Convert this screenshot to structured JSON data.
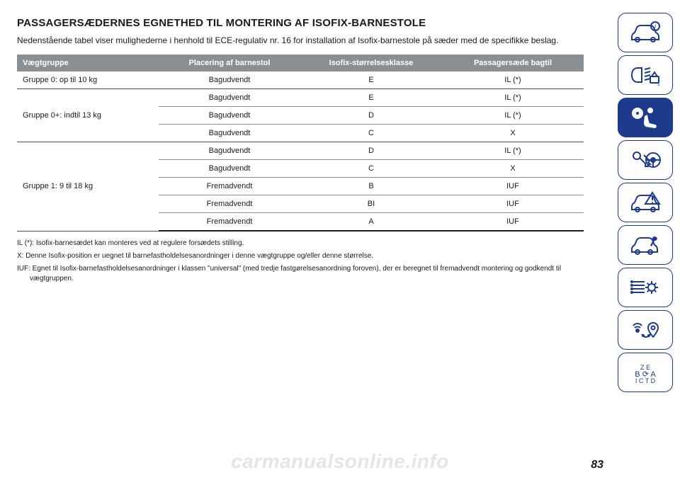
{
  "title": "PASSAGERSÆDERNES EGNETHED TIL MONTERING AF ISOFIX-BARNESTOLE",
  "intro": "Nedenstående tabel viser mulighederne i henhold til ECE-regulativ nr. 16 for installation af Isofix-barnestole på sæder med de specifikke beslag.",
  "table": {
    "columns": [
      "Vægtgruppe",
      "Placering af barnestol",
      "Isofix-størrelsesklasse",
      "Passagersæde bagtil"
    ],
    "col_widths_pct": [
      25,
      25,
      25,
      25
    ],
    "header_bg": "#8a8f94",
    "header_fg": "#ffffff",
    "row_border": "#8a8f94",
    "group_border": "#4a4a4a",
    "end_border": "#1a1a1a",
    "rows": [
      {
        "group": "Gruppe 0: op til 10 kg",
        "orientation": "Bagudvendt",
        "size": "E",
        "rear": "IL (*)",
        "group_rowspan": 1,
        "last_in_group": true
      },
      {
        "group": "Gruppe 0+: indtil 13 kg",
        "orientation": "Bagudvendt",
        "size": "E",
        "rear": "IL (*)",
        "group_rowspan": 3
      },
      {
        "orientation": "Bagudvendt",
        "size": "D",
        "rear": "IL (*)"
      },
      {
        "orientation": "Bagudvendt",
        "size": "C",
        "rear": "X",
        "last_in_group": true
      },
      {
        "group": "Gruppe 1: 9 til 18 kg",
        "orientation": "Bagudvendt",
        "size": "D",
        "rear": "IL (*)",
        "group_rowspan": 5
      },
      {
        "orientation": "Bagudvendt",
        "size": "C",
        "rear": "X"
      },
      {
        "orientation": "Fremadvendt",
        "size": "B",
        "rear": "IUF"
      },
      {
        "orientation": "Fremadvendt",
        "size": "BI",
        "rear": "IUF"
      },
      {
        "orientation": "Fremadvendt",
        "size": "A",
        "rear": "IUF",
        "last_in_group": true,
        "table_end": true
      }
    ]
  },
  "notes": [
    "IL (*): Isofix-barnesædet kan monteres ved at regulere forsædets stilling.",
    "X: Denne Isofix-position er uegnet til barnefastholdelsesanordninger i denne vægtgruppe og/eller denne størrelse.",
    "IUF: Egnet til Isofix-barnefastholdelsesanordninger i klassen \"universal\" (med tredje fastgørelsesanordning foroven), der er beregnet til fremadvendt montering og godkendt til vægtgruppen."
  ],
  "sidebar": {
    "border_color": "#1e3a8a",
    "active_bg": "#1e3a8a",
    "items": [
      {
        "name": "car-info-icon",
        "active": false
      },
      {
        "name": "lights-icon",
        "active": false
      },
      {
        "name": "airbag-seat-icon",
        "active": true
      },
      {
        "name": "key-steering-icon",
        "active": false
      },
      {
        "name": "car-warning-icon",
        "active": false
      },
      {
        "name": "car-service-icon",
        "active": false
      },
      {
        "name": "settings-list-icon",
        "active": false
      },
      {
        "name": "media-location-icon",
        "active": false
      },
      {
        "name": "alphabet-index-icon",
        "active": false
      }
    ]
  },
  "page_number": "83",
  "watermark": "carmanualsonline.info"
}
